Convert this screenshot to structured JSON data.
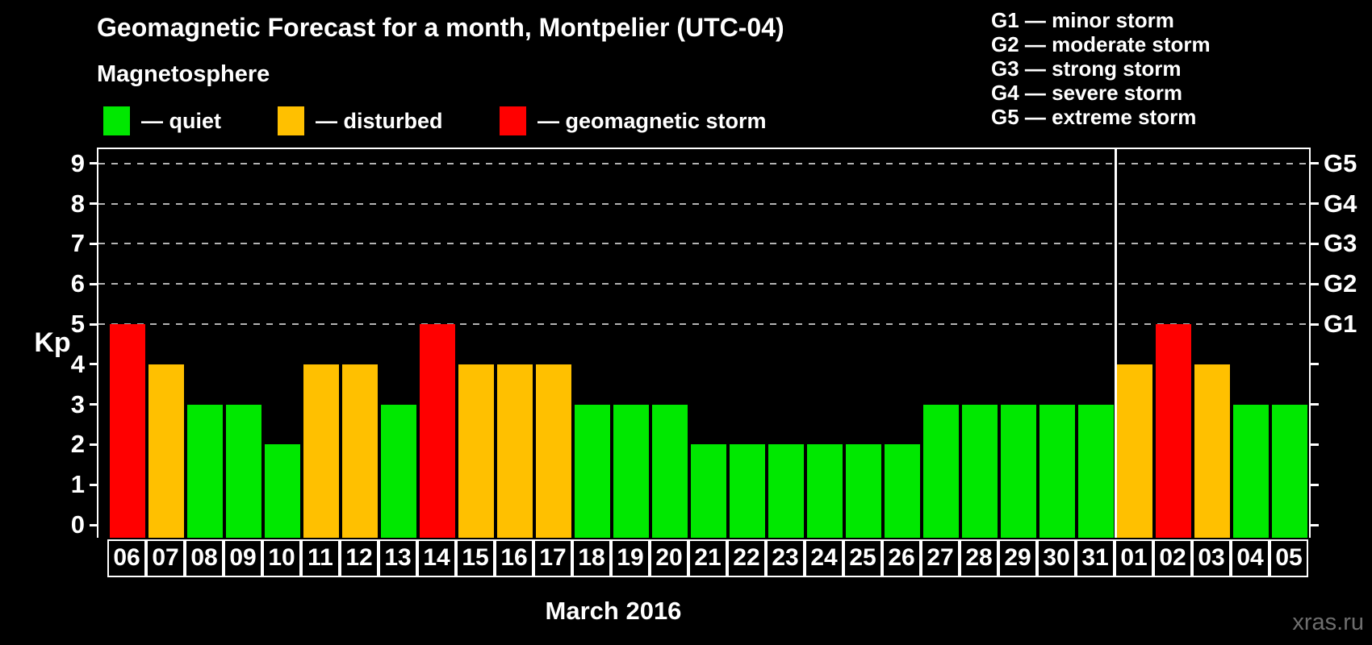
{
  "title": "Geomagnetic Forecast for a month, Montpelier (UTC-04)",
  "subtitle": "Magnetosphere",
  "legend": [
    {
      "name": "quiet",
      "label": "— quiet",
      "color": "#00e800"
    },
    {
      "name": "disturbed",
      "label": "— disturbed",
      "color": "#ffc000"
    },
    {
      "name": "storm",
      "label": "— geomagnetic storm",
      "color": "#ff0000"
    }
  ],
  "storm_scale_legend": [
    "G1 — minor storm",
    "G2 — moderate storm",
    "G3 — strong storm",
    "G4 — severe storm",
    "G5 — extreme storm"
  ],
  "y_axis": {
    "label": "Kp",
    "ticks": [
      0,
      1,
      2,
      3,
      4,
      5,
      6,
      7,
      8,
      9
    ]
  },
  "right_axis": {
    "labels": [
      {
        "value": 5,
        "label": "G1"
      },
      {
        "value": 6,
        "label": "G2"
      },
      {
        "value": 7,
        "label": "G3"
      },
      {
        "value": 8,
        "label": "G4"
      },
      {
        "value": 9,
        "label": "G5"
      }
    ]
  },
  "x_axis_label": "March 2016",
  "watermark": "xras.ru",
  "chart_data": {
    "type": "bar",
    "title": "Geomagnetic Forecast for a month, Montpelier (UTC-04)",
    "xlabel": "March 2016",
    "ylabel": "Kp",
    "ylim": [
      0,
      9
    ],
    "grid_levels": [
      5,
      6,
      7,
      8,
      9
    ],
    "legend_position": "top",
    "categories": [
      "06",
      "07",
      "08",
      "09",
      "10",
      "11",
      "12",
      "13",
      "14",
      "15",
      "16",
      "17",
      "18",
      "19",
      "20",
      "21",
      "22",
      "23",
      "24",
      "25",
      "26",
      "27",
      "28",
      "29",
      "30",
      "31",
      "01",
      "02",
      "03",
      "04",
      "05"
    ],
    "values": [
      5,
      4,
      3,
      3,
      2,
      4,
      4,
      3,
      5,
      4,
      4,
      4,
      3,
      3,
      3,
      2,
      2,
      2,
      2,
      2,
      2,
      3,
      3,
      3,
      3,
      3,
      4,
      5,
      4,
      3,
      3
    ],
    "statuses": [
      "storm",
      "disturbed",
      "quiet",
      "quiet",
      "quiet",
      "disturbed",
      "disturbed",
      "quiet",
      "storm",
      "disturbed",
      "disturbed",
      "disturbed",
      "quiet",
      "quiet",
      "quiet",
      "quiet",
      "quiet",
      "quiet",
      "quiet",
      "quiet",
      "quiet",
      "quiet",
      "quiet",
      "quiet",
      "quiet",
      "quiet",
      "disturbed",
      "storm",
      "disturbed",
      "quiet",
      "quiet"
    ],
    "colors": {
      "quiet": "#00e800",
      "disturbed": "#ffc000",
      "storm": "#ff0000"
    },
    "separator_after_index": 25
  }
}
